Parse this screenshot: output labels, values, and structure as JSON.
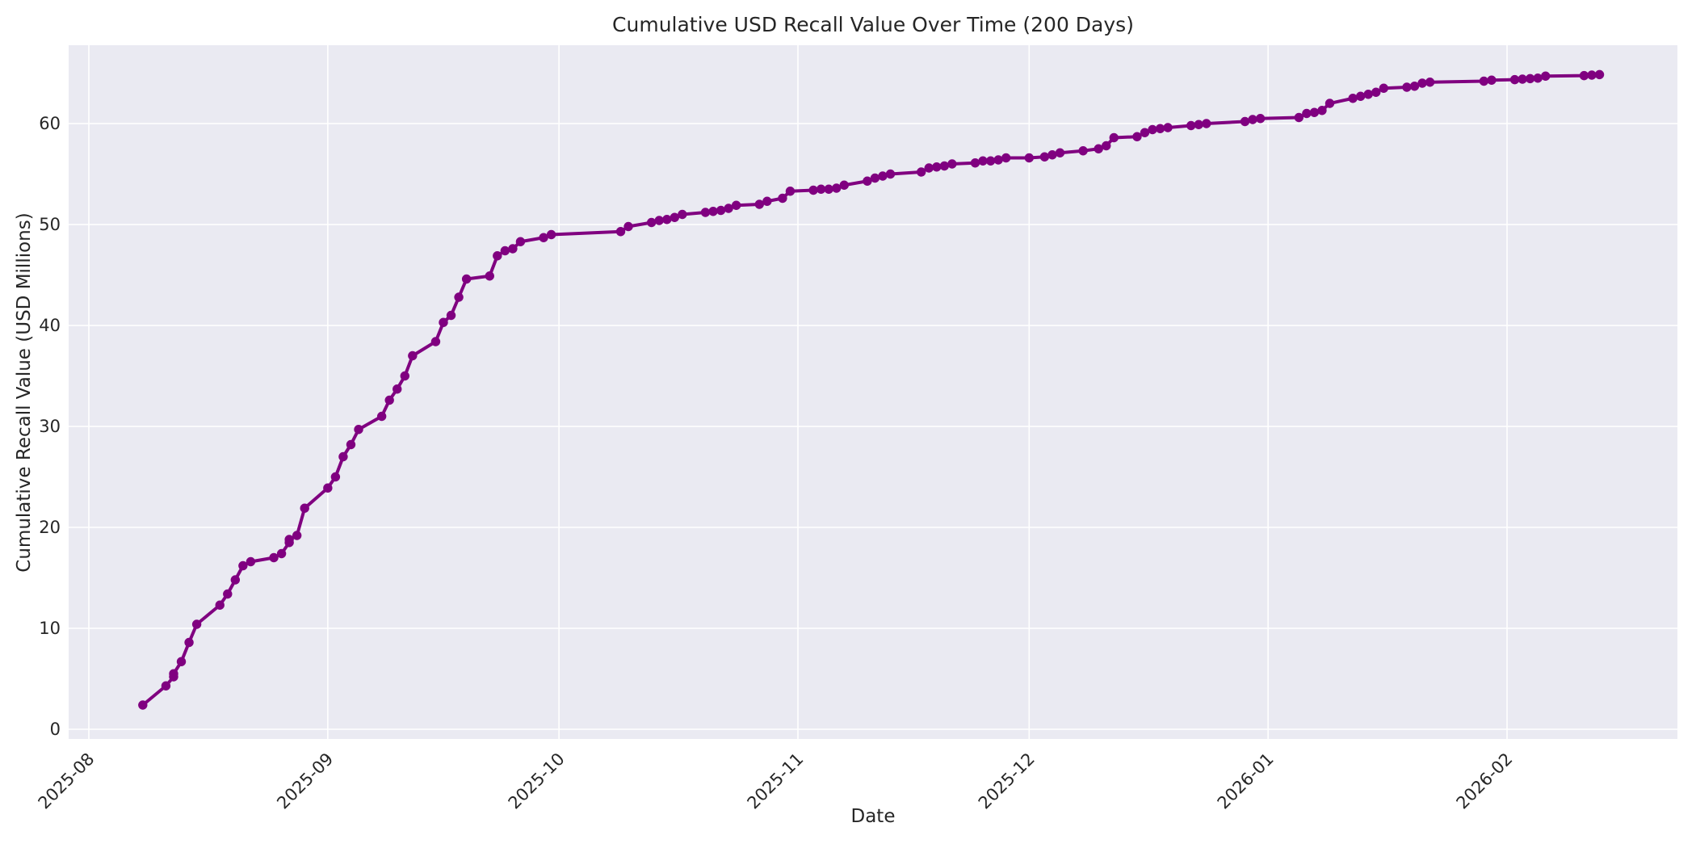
{
  "chart_data": {
    "type": "line",
    "title": "Cumulative USD Recall Value Over Time (200 Days)",
    "xlabel": "Date",
    "ylabel": "Cumulative Recall Value (USD Millions)",
    "grid": true,
    "legend_position": "none",
    "plot_background": "#eaeaf2",
    "grid_color": "#ffffff",
    "line_color": "#800080",
    "marker": "o",
    "marker_color": "#800080",
    "text_color": "#262626",
    "xlim": [
      "2025-07-29",
      "2026-02-23"
    ],
    "ylim": [
      -1.0,
      67.8
    ],
    "x_tick_rotation": 45,
    "y_ticks": [
      0,
      10,
      20,
      30,
      40,
      50,
      60
    ],
    "x_ticks": [
      {
        "date": "2025-08-01",
        "label": "2025-08"
      },
      {
        "date": "2025-09-01",
        "label": "2025-09"
      },
      {
        "date": "2025-10-01",
        "label": "2025-10"
      },
      {
        "date": "2025-11-01",
        "label": "2025-11"
      },
      {
        "date": "2025-12-01",
        "label": "2025-12"
      },
      {
        "date": "2026-01-01",
        "label": "2026-01"
      },
      {
        "date": "2026-02-01",
        "label": "2026-02"
      }
    ],
    "series": [
      {
        "name": "Cumulative USD Recall Value",
        "points": [
          [
            "2025-08-08",
            2.4
          ],
          [
            "2025-08-11",
            4.3
          ],
          [
            "2025-08-12",
            5.2
          ],
          [
            "2025-08-12",
            5.5
          ],
          [
            "2025-08-13",
            6.7
          ],
          [
            "2025-08-14",
            8.6
          ],
          [
            "2025-08-15",
            10.4
          ],
          [
            "2025-08-18",
            12.3
          ],
          [
            "2025-08-19",
            13.4
          ],
          [
            "2025-08-20",
            14.8
          ],
          [
            "2025-08-21",
            16.2
          ],
          [
            "2025-08-22",
            16.6
          ],
          [
            "2025-08-25",
            17.0
          ],
          [
            "2025-08-26",
            17.4
          ],
          [
            "2025-08-27",
            18.5
          ],
          [
            "2025-08-27",
            18.8
          ],
          [
            "2025-08-28",
            19.2
          ],
          [
            "2025-08-29",
            21.9
          ],
          [
            "2025-09-01",
            23.9
          ],
          [
            "2025-09-02",
            25.0
          ],
          [
            "2025-09-03",
            27.0
          ],
          [
            "2025-09-04",
            28.2
          ],
          [
            "2025-09-05",
            29.7
          ],
          [
            "2025-09-08",
            31.0
          ],
          [
            "2025-09-09",
            32.6
          ],
          [
            "2025-09-10",
            33.7
          ],
          [
            "2025-09-11",
            35.0
          ],
          [
            "2025-09-12",
            37.0
          ],
          [
            "2025-09-15",
            38.4
          ],
          [
            "2025-09-16",
            40.3
          ],
          [
            "2025-09-17",
            41.0
          ],
          [
            "2025-09-18",
            42.8
          ],
          [
            "2025-09-19",
            44.6
          ],
          [
            "2025-09-22",
            44.9
          ],
          [
            "2025-09-23",
            46.9
          ],
          [
            "2025-09-24",
            47.4
          ],
          [
            "2025-09-25",
            47.6
          ],
          [
            "2025-09-26",
            48.3
          ],
          [
            "2025-09-29",
            48.7
          ],
          [
            "2025-09-30",
            49.0
          ],
          [
            "2025-10-09",
            49.3
          ],
          [
            "2025-10-10",
            49.8
          ],
          [
            "2025-10-13",
            50.2
          ],
          [
            "2025-10-14",
            50.4
          ],
          [
            "2025-10-15",
            50.5
          ],
          [
            "2025-10-16",
            50.7
          ],
          [
            "2025-10-17",
            51.0
          ],
          [
            "2025-10-20",
            51.2
          ],
          [
            "2025-10-21",
            51.3
          ],
          [
            "2025-10-22",
            51.4
          ],
          [
            "2025-10-23",
            51.6
          ],
          [
            "2025-10-24",
            51.9
          ],
          [
            "2025-10-27",
            52.0
          ],
          [
            "2025-10-28",
            52.3
          ],
          [
            "2025-10-30",
            52.6
          ],
          [
            "2025-10-31",
            53.3
          ],
          [
            "2025-11-03",
            53.4
          ],
          [
            "2025-11-04",
            53.5
          ],
          [
            "2025-11-05",
            53.5
          ],
          [
            "2025-11-06",
            53.6
          ],
          [
            "2025-11-07",
            53.9
          ],
          [
            "2025-11-10",
            54.3
          ],
          [
            "2025-11-11",
            54.6
          ],
          [
            "2025-11-12",
            54.8
          ],
          [
            "2025-11-13",
            55.0
          ],
          [
            "2025-11-17",
            55.2
          ],
          [
            "2025-11-18",
            55.6
          ],
          [
            "2025-11-19",
            55.7
          ],
          [
            "2025-11-20",
            55.8
          ],
          [
            "2025-11-21",
            56.0
          ],
          [
            "2025-11-24",
            56.1
          ],
          [
            "2025-11-25",
            56.3
          ],
          [
            "2025-11-26",
            56.3
          ],
          [
            "2025-11-27",
            56.4
          ],
          [
            "2025-11-28",
            56.6
          ],
          [
            "2025-12-01",
            56.6
          ],
          [
            "2025-12-03",
            56.7
          ],
          [
            "2025-12-04",
            56.9
          ],
          [
            "2025-12-05",
            57.1
          ],
          [
            "2025-12-08",
            57.3
          ],
          [
            "2025-12-10",
            57.5
          ],
          [
            "2025-12-11",
            57.8
          ],
          [
            "2025-12-12",
            58.6
          ],
          [
            "2025-12-15",
            58.7
          ],
          [
            "2025-12-16",
            59.1
          ],
          [
            "2025-12-17",
            59.4
          ],
          [
            "2025-12-18",
            59.5
          ],
          [
            "2025-12-19",
            59.6
          ],
          [
            "2025-12-22",
            59.8
          ],
          [
            "2025-12-23",
            59.9
          ],
          [
            "2025-12-24",
            60.0
          ],
          [
            "2025-12-29",
            60.2
          ],
          [
            "2025-12-30",
            60.4
          ],
          [
            "2025-12-31",
            60.5
          ],
          [
            "2026-01-05",
            60.6
          ],
          [
            "2026-01-06",
            61.0
          ],
          [
            "2026-01-07",
            61.1
          ],
          [
            "2026-01-08",
            61.3
          ],
          [
            "2026-01-09",
            62.0
          ],
          [
            "2026-01-12",
            62.5
          ],
          [
            "2026-01-13",
            62.7
          ],
          [
            "2026-01-14",
            62.9
          ],
          [
            "2026-01-15",
            63.1
          ],
          [
            "2026-01-16",
            63.5
          ],
          [
            "2026-01-19",
            63.6
          ],
          [
            "2026-01-20",
            63.7
          ],
          [
            "2026-01-21",
            64.0
          ],
          [
            "2026-01-22",
            64.1
          ],
          [
            "2026-01-29",
            64.2
          ],
          [
            "2026-01-30",
            64.3
          ],
          [
            "2026-02-02",
            64.35
          ],
          [
            "2026-02-03",
            64.4
          ],
          [
            "2026-02-04",
            64.45
          ],
          [
            "2026-02-05",
            64.5
          ],
          [
            "2026-02-06",
            64.7
          ],
          [
            "2026-02-11",
            64.75
          ],
          [
            "2026-02-12",
            64.8
          ],
          [
            "2026-02-13",
            64.85
          ]
        ]
      }
    ]
  }
}
